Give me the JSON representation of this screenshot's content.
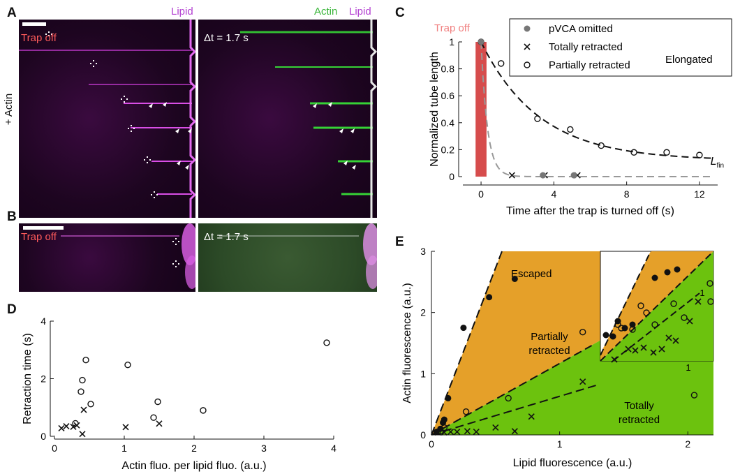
{
  "panels": {
    "A": "A",
    "B": "B",
    "C": "C",
    "D": "D",
    "E": "E"
  },
  "panelA": {
    "lipid_label": "Lipid",
    "actin_label": "Actin",
    "lipid_label2": "Lipid",
    "trap_off": "Trap off",
    "dt": "Δt = 1.7 s",
    "side_label": "+ Actin"
  },
  "panelB": {
    "trap_off": "Trap off",
    "dt": "Δt = 1.7 s"
  },
  "chartC": {
    "type": "scatter",
    "banner": "Trap off",
    "xlabel": "Time after the trap is turned off (s)",
    "ylabel": "Normalized tube length",
    "xlim": [
      -1,
      13
    ],
    "ylim": [
      0,
      1
    ],
    "xticks": [
      "0",
      "4",
      "8",
      "12"
    ],
    "yticks": [
      "0",
      "0.2",
      "0.4",
      "0.6",
      "0.8",
      "1"
    ],
    "legend": [
      "pVCA omitted",
      "Totally retracted",
      "Partially retracted"
    ],
    "extra_label": "Elongated",
    "curve_label_main": "L",
    "curve_label_sub": "fin",
    "series": [
      {
        "marker": "circle-open",
        "x": [
          0,
          1.1,
          3.1,
          4.9,
          6.6,
          8.4,
          10.2,
          12.0
        ],
        "y": [
          1.0,
          0.84,
          0.43,
          0.35,
          0.23,
          0.18,
          0.18,
          0.16
        ]
      },
      {
        "marker": "x",
        "x": [
          1.7,
          3.5,
          5.3
        ],
        "y": [
          0.01,
          0.01,
          0.01
        ]
      },
      {
        "marker": "circle-filled",
        "x": [
          0,
          3.4,
          5.1
        ],
        "y": [
          1.0,
          0.01,
          0.01
        ]
      }
    ]
  },
  "chartD": {
    "type": "scatter",
    "xlabel": "Actin fluo. per lipid fluo. (a.u.)",
    "ylabel": "Retraction time (s)",
    "xlim": [
      0,
      4
    ],
    "ylim": [
      0,
      4
    ],
    "xticks": [
      "0",
      "1",
      "2",
      "3",
      "4"
    ],
    "yticks": [
      "0",
      "2",
      "4"
    ],
    "series": [
      {
        "marker": "circle-open",
        "x": [
          0.45,
          0.4,
          0.38,
          0.52,
          1.05,
          0.3,
          1.42,
          1.48,
          2.13,
          3.9
        ],
        "y": [
          2.65,
          1.95,
          1.55,
          1.12,
          2.48,
          0.45,
          0.65,
          1.2,
          0.9,
          3.25
        ]
      },
      {
        "marker": "x",
        "x": [
          0.1,
          0.17,
          0.27,
          0.32,
          0.42,
          0.4,
          1.02,
          1.5
        ],
        "y": [
          0.28,
          0.35,
          0.33,
          0.38,
          0.92,
          0.08,
          0.32,
          0.44
        ]
      }
    ]
  },
  "chartE": {
    "type": "scatter",
    "xlabel": "Lipid fluorescence (a.u.)",
    "ylabel": "Actin fluorescence (a.u.)",
    "xlim": [
      0,
      2.2
    ],
    "ylim": [
      0,
      3
    ],
    "xticks": [
      "0",
      "1",
      "2"
    ],
    "yticks": [
      "0",
      "1",
      "2",
      "3"
    ],
    "regions": [
      "Escaped",
      "Partially retracted",
      "Totally retracted"
    ],
    "region_line1": "Partially",
    "region_line2": "retracted",
    "region_line3": "Totally",
    "region_line4": "retracted",
    "colors": {
      "escaped": "#E5A029",
      "partial": "#6CC20E"
    },
    "inset_ticks": [
      "1",
      "1"
    ],
    "series": [
      {
        "marker": "circle-filled",
        "x": [
          0.04,
          0.07,
          0.09,
          0.1,
          0.13,
          0.25,
          0.45,
          0.65
        ],
        "y": [
          0.05,
          0.1,
          0.2,
          0.25,
          0.6,
          1.75,
          2.25,
          2.55
        ]
      },
      {
        "marker": "circle-open",
        "x": [
          0.05,
          0.07,
          0.1,
          0.27,
          0.6,
          1.18,
          2.05
        ],
        "y": [
          0.05,
          0.06,
          0.12,
          0.38,
          0.6,
          1.68,
          0.65
        ]
      },
      {
        "marker": "x",
        "x": [
          0.05,
          0.1,
          0.15,
          0.2,
          0.28,
          0.35,
          0.5,
          0.65,
          0.78,
          1.18
        ],
        "y": [
          0.04,
          0.04,
          0.05,
          0.05,
          0.06,
          0.05,
          0.12,
          0.06,
          0.3,
          0.87
        ]
      }
    ]
  }
}
